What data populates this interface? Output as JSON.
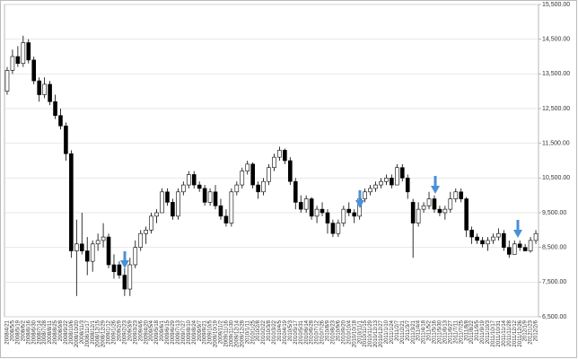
{
  "chart_data": {
    "type": "candlestick",
    "categories": [
      "2008/4/21",
      "2008/5/5",
      "2008/5/19",
      "2008/6/2",
      "2008/6/16",
      "2008/6/30",
      "2008/7/14",
      "2008/7/28",
      "2008/8/11",
      "2008/8/25",
      "2008/9/8",
      "2008/9/22",
      "2008/10/6",
      "2008/10/20",
      "2008/11/3",
      "2008/11/17",
      "2008/12/1",
      "2008/12/15",
      "2008/12/29",
      "2009/1/12",
      "2009/1/26",
      "2009/2/9",
      "2009/2/23",
      "2009/3/9",
      "2009/3/23",
      "2009/4/6",
      "2009/4/20",
      "2009/5/4",
      "2009/5/18",
      "2009/6/1",
      "2009/6/15",
      "2009/6/29",
      "2009/7/13",
      "2009/7/27",
      "2009/8/10",
      "2009/8/24",
      "2009/9/7",
      "2009/9/21",
      "2009/10/5",
      "2009/10/19",
      "2009/11/2",
      "2009/11/16",
      "2009/11/30",
      "2009/12/14",
      "2009/12/28",
      "2010/1/11",
      "2010/1/25",
      "2010/2/8",
      "2010/2/22",
      "2010/3/8",
      "2010/3/22",
      "2010/4/5",
      "2010/4/19",
      "2010/5/3",
      "2010/5/17",
      "2010/5/31",
      "2010/6/14",
      "2010/6/28",
      "2010/7/12",
      "2010/7/26",
      "2010/8/9",
      "2010/8/23",
      "2010/9/6",
      "2010/9/20",
      "2010/10/4",
      "2010/10/18",
      "2010/11/1",
      "2010/11/15",
      "2010/11/29",
      "2010/12/13",
      "2010/12/27",
      "2011/1/10",
      "2011/1/24",
      "2011/2/7",
      "2011/2/21",
      "2011/3/7",
      "2011/3/21",
      "2011/4/4",
      "2011/4/18",
      "2011/5/2",
      "2011/5/16",
      "2011/5/30",
      "2011/6/13",
      "2011/6/27",
      "2011/7/11",
      "2011/7/25",
      "2011/8/8",
      "2011/8/22",
      "2011/9/5",
      "2011/9/19",
      "2011/10/3",
      "2011/10/17",
      "2011/10/31",
      "2011/11/14",
      "2011/11/28",
      "2011/12/12",
      "2011/12/26",
      "2012/1/9",
      "2012/1/23",
      "2012/2/6"
    ],
    "open": [
      13000,
      13600,
      14000,
      13800,
      14400,
      13900,
      13300,
      12900,
      13200,
      12700,
      12300,
      12000,
      11200,
      8400,
      8600,
      8400,
      8100,
      8600,
      8700,
      8800,
      8000,
      8000,
      7700,
      7300,
      8000,
      8500,
      8900,
      9000,
      9400,
      9500,
      10100,
      9800,
      9400,
      10100,
      10300,
      10600,
      10300,
      10200,
      9800,
      10100,
      9700,
      9400,
      9200,
      10100,
      10300,
      10700,
      10900,
      10300,
      10100,
      10400,
      10800,
      11100,
      11300,
      11000,
      10400,
      9800,
      9600,
      9900,
      9400,
      9600,
      9500,
      9200,
      8900,
      9200,
      9600,
      9500,
      9400,
      9900,
      10100,
      10200,
      10300,
      10400,
      10500,
      10300,
      10800,
      10500,
      9800,
      9200,
      9600,
      9700,
      9900,
      9600,
      9500,
      9600,
      9900,
      10100,
      9900,
      9000,
      8800,
      8700,
      8600,
      8700,
      8800,
      8900,
      8500,
      8300,
      8600,
      8500,
      8400,
      8700
    ],
    "high": [
      13700,
      14200,
      14300,
      14600,
      14500,
      14000,
      13400,
      13400,
      13300,
      12900,
      12500,
      12100,
      11300,
      9300,
      9500,
      8800,
      8700,
      8900,
      9200,
      8900,
      8300,
      8100,
      7900,
      8200,
      8700,
      9000,
      9100,
      9500,
      9600,
      10200,
      10200,
      9900,
      10200,
      10400,
      10700,
      10700,
      10400,
      10300,
      10200,
      10300,
      9900,
      9600,
      10200,
      10400,
      10800,
      11000,
      10950,
      10400,
      10500,
      10900,
      11200,
      11400,
      11350,
      11100,
      10500,
      10000,
      10000,
      9950,
      9700,
      9800,
      9600,
      9300,
      9300,
      9700,
      9800,
      9600,
      10000,
      10200,
      10300,
      10400,
      10500,
      10600,
      10600,
      10900,
      10900,
      10600,
      9900,
      9800,
      9800,
      10100,
      10000,
      9700,
      9700,
      10100,
      10200,
      10200,
      9950,
      9100,
      8900,
      8800,
      8800,
      8900,
      9050,
      9000,
      8700,
      8700,
      8700,
      8600,
      8800,
      9000
    ],
    "low": [
      12900,
      13500,
      13700,
      13700,
      13800,
      13200,
      12700,
      12800,
      12600,
      12200,
      11900,
      11000,
      8200,
      7100,
      8300,
      7700,
      7800,
      8400,
      8500,
      7900,
      7600,
      7600,
      7100,
      7100,
      7900,
      8400,
      8600,
      8900,
      9200,
      9500,
      9700,
      9300,
      9300,
      10000,
      10200,
      10200,
      10100,
      9700,
      9700,
      9600,
      9300,
      9100,
      9100,
      10000,
      10200,
      10600,
      10200,
      9900,
      10000,
      10300,
      10700,
      11000,
      10900,
      10300,
      9600,
      9500,
      9500,
      9300,
      9200,
      9400,
      8900,
      8800,
      8800,
      9100,
      9400,
      9200,
      9300,
      9800,
      10000,
      10100,
      10200,
      10300,
      10200,
      10300,
      10400,
      9900,
      8200,
      9100,
      9500,
      9600,
      9500,
      9400,
      9300,
      9500,
      9800,
      9800,
      8800,
      8600,
      8600,
      8500,
      8400,
      8600,
      8700,
      8400,
      8200,
      8300,
      8400,
      8400,
      8350,
      8600
    ],
    "close": [
      13600,
      14000,
      13800,
      14400,
      13900,
      13300,
      12900,
      13200,
      12700,
      12300,
      12000,
      11200,
      8400,
      8600,
      8400,
      8100,
      8600,
      8700,
      8800,
      8000,
      7800,
      7700,
      7300,
      8000,
      8500,
      8900,
      9000,
      9400,
      9500,
      10100,
      9800,
      9400,
      10100,
      10300,
      10600,
      10300,
      10200,
      9800,
      10100,
      9700,
      9400,
      9200,
      10100,
      10300,
      10700,
      10900,
      10300,
      10100,
      10400,
      10800,
      11100,
      11300,
      11000,
      10400,
      9800,
      9600,
      9900,
      9400,
      9600,
      9500,
      9200,
      8900,
      9200,
      9600,
      9500,
      9400,
      9900,
      10100,
      10200,
      10300,
      10400,
      10500,
      10300,
      10800,
      10500,
      10100,
      9200,
      9600,
      9700,
      9900,
      9600,
      9500,
      9600,
      9900,
      10100,
      9900,
      9000,
      8800,
      8700,
      8600,
      8700,
      8800,
      8900,
      8500,
      8300,
      8600,
      8500,
      8400,
      8700,
      8900
    ],
    "up_color": "#ffffff",
    "down_color": "#000000",
    "edge_color": "#000000",
    "ylim": [
      6500,
      15500
    ],
    "yticks": [
      {
        "value": 6500,
        "label": "6,500.00"
      },
      {
        "value": 7500,
        "label": "7,500.00"
      },
      {
        "value": 8500,
        "label": "8,500.00"
      },
      {
        "value": 9500,
        "label": "9,500.00"
      },
      {
        "value": 10500,
        "label": "10,500.00"
      },
      {
        "value": 11500,
        "label": "11,500.00"
      },
      {
        "value": 12500,
        "label": "12,500.00"
      },
      {
        "value": 13500,
        "label": "13,500.00"
      },
      {
        "value": 14500,
        "label": "14,500.00"
      },
      {
        "value": 15500,
        "label": "15,500.00"
      }
    ],
    "grid": true
  }
}
